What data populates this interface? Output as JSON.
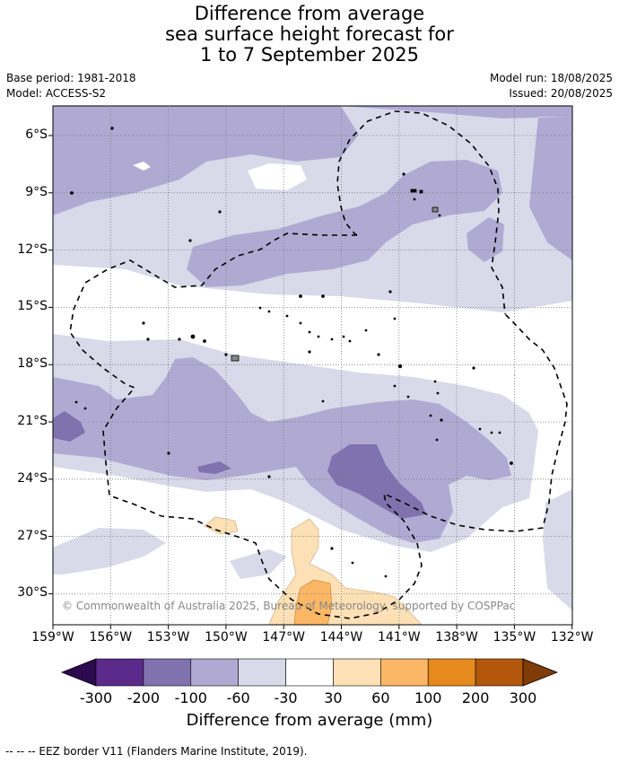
{
  "title": {
    "line1": "Difference from average",
    "line2": "sea surface height forecast for",
    "line3": "1 to 7 September 2025"
  },
  "meta": {
    "base_period": "Base period: 1981-2018",
    "model": "Model: ACCESS-S2",
    "model_run": "Model run: 18/08/2025",
    "issued": "Issued: 20/08/2025"
  },
  "map": {
    "lat_labels": [
      "6°S",
      "9°S",
      "12°S",
      "15°S",
      "18°S",
      "21°S",
      "24°S",
      "27°S",
      "30°S"
    ],
    "lon_labels": [
      "159°W",
      "156°W",
      "153°W",
      "150°W",
      "147°W",
      "144°W",
      "141°W",
      "138°W",
      "135°W",
      "132°W"
    ],
    "copyright": "© Commonwealth of Australia 2025, Bureau of Meteorology, supported by COSPPac",
    "grid": true
  },
  "colorbar": {
    "title": "Difference from average (mm)",
    "ticks": [
      "-300",
      "-200",
      "-100",
      "-60",
      "-30",
      "30",
      "60",
      "100",
      "200",
      "300"
    ],
    "colors": {
      "under": "#2d0a4e",
      "c1": "#5b2a8a",
      "c2": "#8072ae",
      "c3": "#b0aad3",
      "c4": "#d9d9ea",
      "c5": "#ffffff",
      "c6": "#fde0b5",
      "c7": "#fbb765",
      "c8": "#e68a1e",
      "c9": "#b3570d",
      "over": "#7f3b08"
    }
  },
  "legend_note": "--  --  -- EEZ border V11 (Flanders Marine Institute, 2019)."
}
